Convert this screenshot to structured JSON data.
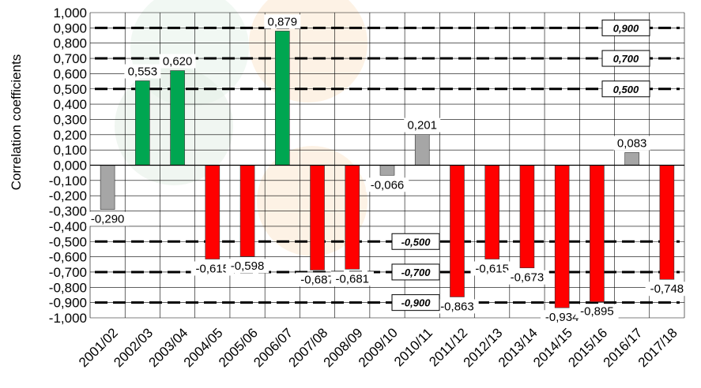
{
  "chart_data": {
    "type": "bar",
    "ylabel": "Correlation coefficients",
    "ylim": [
      -1.0,
      1.0
    ],
    "ytick_step": 0.1,
    "ytick_labels": [
      "1,000",
      "0,900",
      "0,800",
      "0,700",
      "0,600",
      "0,500",
      "0,400",
      "0,300",
      "0,200",
      "0,100",
      "0,000",
      "-0,100",
      "-0,200",
      "-0,300",
      "-0,400",
      "-0,500",
      "-0,600",
      "-0,700",
      "-0,800",
      "-0,900",
      "-1,000"
    ],
    "grid": true,
    "categories": [
      "2001/02",
      "2002/03",
      "2003/04",
      "2004/05",
      "2005/06",
      "2006/07",
      "2007/08",
      "2008/09",
      "2009/10",
      "2010/11",
      "2011/12",
      "2012/13",
      "2013/14",
      "2014/15",
      "2015/16",
      "2016/17",
      "2017/18"
    ],
    "values": [
      -0.29,
      0.553,
      0.62,
      -0.615,
      -0.598,
      0.879,
      -0.687,
      -0.681,
      -0.066,
      0.201,
      -0.863,
      -0.615,
      -0.673,
      -0.934,
      -0.895,
      0.083,
      -0.748
    ],
    "data_labels": [
      "-0,290",
      "0,553",
      "0,620",
      "-0,615",
      "-0,598",
      "0,879",
      "-0,687",
      "-0,681",
      "-0,066",
      "0,201",
      "-0,863",
      "-0,615",
      "-0,673",
      "-0,934",
      "-0,895",
      "0,083",
      "-0,748"
    ],
    "bar_colors": [
      "#a6a6a6",
      "#00a651",
      "#00a651",
      "#ff0000",
      "#ff0000",
      "#00a651",
      "#ff0000",
      "#ff0000",
      "#a6a6a6",
      "#a6a6a6",
      "#ff0000",
      "#ff0000",
      "#ff0000",
      "#ff0000",
      "#ff0000",
      "#a6a6a6",
      "#ff0000"
    ],
    "reference_lines": [
      {
        "value": 0.9,
        "label": "0,900"
      },
      {
        "value": 0.7,
        "label": "0,700"
      },
      {
        "value": 0.5,
        "label": "0,500"
      },
      {
        "value": -0.5,
        "label": "-0,500"
      },
      {
        "value": -0.7,
        "label": "-0,700"
      },
      {
        "value": -0.9,
        "label": "-0,900"
      }
    ],
    "colors": {
      "positive_significant": "#00a651",
      "negative_significant": "#ff0000",
      "not_significant": "#a6a6a6",
      "grid": "#000000",
      "reference_line": "#000000"
    }
  }
}
